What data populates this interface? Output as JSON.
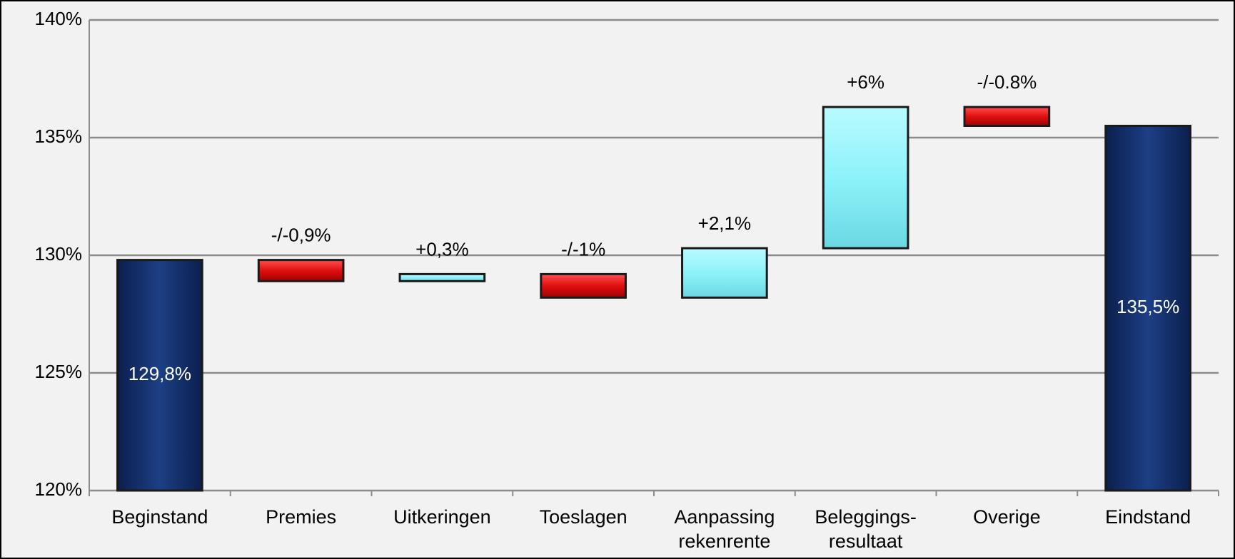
{
  "chart_data": {
    "type": "waterfall",
    "categories": [
      "Beginstand",
      "Premies",
      "Uitkeringen",
      "Toeslagen",
      "Aanpassing rekenrente",
      "Beleggings-resultaat",
      "Overige",
      "Eindstand"
    ],
    "measure": [
      "absolute",
      "relative",
      "relative",
      "relative",
      "relative",
      "relative",
      "relative",
      "total"
    ],
    "values": [
      129.8,
      -0.9,
      0.3,
      -1,
      2.1,
      6,
      -0.8,
      135.5
    ],
    "value_labels": [
      "129,8%",
      "-/-0,9%",
      "+0,3%",
      "-/-1%",
      "+2,1%",
      "+6%",
      "-/-0.8%",
      "135,5%"
    ],
    "colors": {
      "total": "#13306e",
      "increase": "#8ef2fa",
      "decrease": "#e31414"
    },
    "ylim": [
      120,
      140
    ],
    "yticks": [
      {
        "value": 120,
        "label": "120%"
      },
      {
        "value": 125,
        "label": "125%"
      },
      {
        "value": 130,
        "label": "130%"
      },
      {
        "value": 135,
        "label": "135%"
      },
      {
        "value": 140,
        "label": "140%"
      }
    ],
    "grid": true
  }
}
